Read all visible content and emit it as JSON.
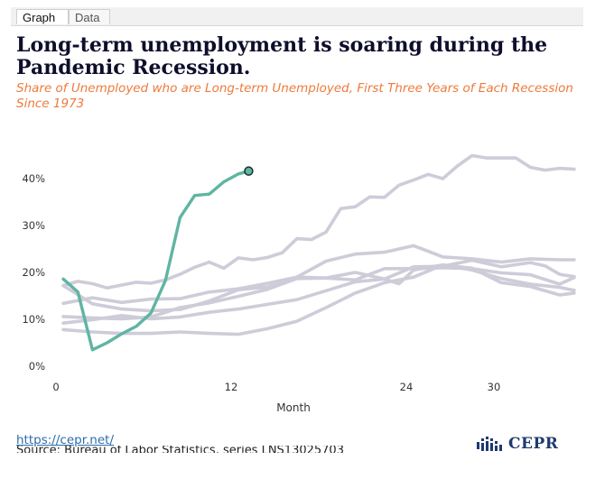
{
  "tabs": [
    {
      "label": "Graph",
      "active": true
    },
    {
      "label": "Data",
      "active": false
    }
  ],
  "title": "Long-term unemployment is soaring during the Pandemic Recession.",
  "subtitle": "Share of Unemployed who are Long-term Unemployed, First Three Years of Each Recession Since 1973",
  "colors": {
    "highlight": "#5fb5a2",
    "background_series": "#cdccd8",
    "title": "#0e0e2c",
    "subtitle": "#ee7a3c",
    "link": "#2b6dab",
    "logo": "#1e3a6e"
  },
  "chart_data": {
    "type": "line",
    "xlabel": "Month",
    "ylabel": "",
    "x_ticks": [
      "0",
      "12",
      "24",
      "30"
    ],
    "y_ticks": [
      "0%",
      "10%",
      "20%",
      "30%",
      "40%"
    ],
    "xlim": [
      0,
      36
    ],
    "ylim": [
      0,
      45
    ],
    "grid": false,
    "series": [
      {
        "highlight": true,
        "end_marker": true,
        "x": [
          0.5,
          1.5,
          2.5,
          3.5,
          4.5,
          5.5,
          6.5,
          7.5,
          8.5,
          9.5,
          10.5,
          11.5,
          12.5,
          13.2
        ],
        "y": [
          18.6,
          15.8,
          3.5,
          5.0,
          6.9,
          8.5,
          11.3,
          18.3,
          31.7,
          36.4,
          36.7,
          39.3,
          41.0,
          41.6
        ]
      },
      {
        "x": [
          0.5,
          1.5,
          2.5,
          3.5,
          4.5,
          5.5,
          6.5,
          7.5,
          8.5,
          9.5,
          10.5,
          11.5,
          12.5,
          13.5,
          14.5,
          15.5,
          16.5,
          17.5,
          18.5,
          19.5,
          20.5,
          21.5,
          22.5,
          23.5,
          24.5,
          25.5,
          26.5,
          27.5,
          28.5,
          29.5,
          30.5,
          31.5,
          32.5,
          33.5,
          34.5,
          35.5
        ],
        "y": [
          17.2,
          18.1,
          17.6,
          16.7,
          17.3,
          17.9,
          17.7,
          18.4,
          19.6,
          21.1,
          22.2,
          20.9,
          23.1,
          22.7,
          23.2,
          24.2,
          27.2,
          27.0,
          28.6,
          33.6,
          34.0,
          36.1,
          36.0,
          38.6,
          39.7,
          40.9,
          40.0,
          42.7,
          44.9,
          44.4,
          44.4,
          44.4,
          42.4,
          41.8,
          42.2,
          42.0
        ]
      },
      {
        "x": [
          0.5,
          2.5,
          4.5,
          6.5,
          8.5,
          10.5,
          12.5,
          14.5,
          16.5,
          18.5,
          20.5,
          22.5,
          24.5,
          25.5,
          26.5,
          28.5,
          30.5,
          32.5,
          34.5,
          35.5
        ],
        "y": [
          13.4,
          14.6,
          13.6,
          14.3,
          14.4,
          15.8,
          16.5,
          17.7,
          19.0,
          22.4,
          23.9,
          24.3,
          25.7,
          24.5,
          23.3,
          22.9,
          22.2,
          22.9,
          22.7,
          22.7
        ]
      },
      {
        "x": [
          0.5,
          2.5,
          4.5,
          6.5,
          8.5,
          10.5,
          12.5,
          14.5,
          16.5,
          18.5,
          20.5,
          22.5,
          24.5,
          26.5,
          28.5,
          30.5,
          32.5,
          33.5,
          34.5,
          35.5
        ],
        "y": [
          17.2,
          13.3,
          12.2,
          11.8,
          12.1,
          13.9,
          16.3,
          16.9,
          19.0,
          18.8,
          20.0,
          18.6,
          21.2,
          21.3,
          22.6,
          21.2,
          22.1,
          21.4,
          19.6,
          19.1
        ]
      },
      {
        "x": [
          0.5,
          2.5,
          4.5,
          6.5,
          8.5,
          10.5,
          12.5,
          14.5,
          16.5,
          18.5,
          20.5,
          22.5,
          24.5,
          26.5,
          28.5,
          30.5,
          32.5,
          34.5,
          35.5
        ],
        "y": [
          10.6,
          10.3,
          10.1,
          10.5,
          12.5,
          13.5,
          14.9,
          16.4,
          18.7,
          18.8,
          18.4,
          20.8,
          20.8,
          21.0,
          20.8,
          19.9,
          19.5,
          17.5,
          18.9
        ]
      },
      {
        "x": [
          0.5,
          2.5,
          4.5,
          6.5,
          8.5,
          10.5,
          12.5,
          14.5,
          16.5,
          18.5,
          20.5,
          22.5,
          23.5,
          24.5,
          26.5,
          28.5,
          30.5,
          32.5,
          34.5,
          35.5
        ],
        "y": [
          9.2,
          9.9,
          10.8,
          10.1,
          10.5,
          11.5,
          12.2,
          13.2,
          14.2,
          16.1,
          18.0,
          18.6,
          17.6,
          20.5,
          21.6,
          20.9,
          17.8,
          17.0,
          15.2,
          15.6
        ]
      },
      {
        "x": [
          0.5,
          2.5,
          4.5,
          6.5,
          8.5,
          10.5,
          12.5,
          14.5,
          16.5,
          18.5,
          20.5,
          22.5,
          24.5,
          26.5,
          28.5,
          30.5,
          32.5,
          34.5,
          35.5
        ],
        "y": [
          7.8,
          7.3,
          7.0,
          7.0,
          7.3,
          7.0,
          6.8,
          8.0,
          9.6,
          12.5,
          15.6,
          17.8,
          19.0,
          21.6,
          20.5,
          18.7,
          17.5,
          16.8,
          16.2
        ]
      }
    ]
  },
  "footer": {
    "link_text": "https://cepr.net/",
    "source_text": "Source: Bureau of Labor Statistics, series LNS13025703",
    "logo_text": "CEPR"
  }
}
